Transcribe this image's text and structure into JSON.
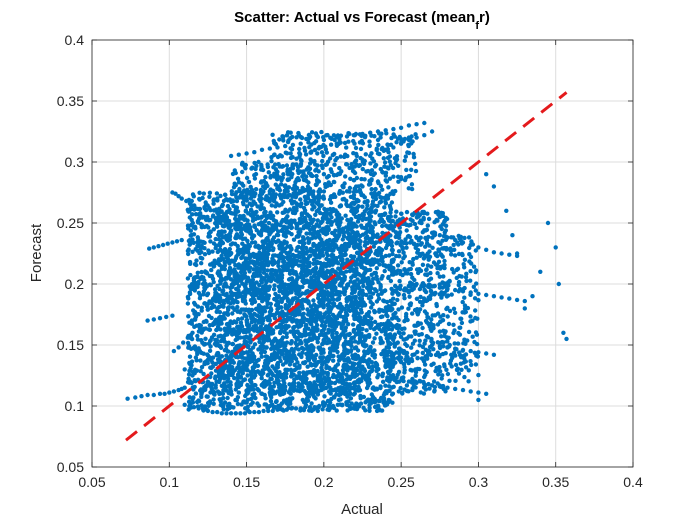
{
  "chart_data": {
    "type": "scatter",
    "title_main": "Scatter: Actual vs Forecast (mean",
    "title_sub": "f",
    "title_tail": "r)",
    "xlabel": "Actual",
    "ylabel": "Forecast",
    "xlim": [
      0.05,
      0.4
    ],
    "ylim": [
      0.05,
      0.4
    ],
    "xticks": [
      "0.05",
      "0.1",
      "0.15",
      "0.2",
      "0.25",
      "0.3",
      "0.35",
      "0.4"
    ],
    "yticks": [
      "0.05",
      "0.1",
      "0.15",
      "0.2",
      "0.25",
      "0.3",
      "0.35",
      "0.4"
    ],
    "grid": true,
    "colors": {
      "points": "#0072BD",
      "reference_line": "#E41A1C"
    },
    "reference_line": {
      "x": [
        0.072,
        0.357
      ],
      "y": [
        0.072,
        0.357
      ],
      "style": "dashed"
    },
    "series": [
      {
        "marker": "dot",
        "approx_point_count": 6000,
        "x": [
          0.073,
          0.078,
          0.082,
          0.086,
          0.09,
          0.094,
          0.097,
          0.1,
          0.103,
          0.106,
          0.108,
          0.11,
          0.087,
          0.09,
          0.093,
          0.096,
          0.099,
          0.102,
          0.105,
          0.108,
          0.086,
          0.09,
          0.094,
          0.098,
          0.102,
          0.102,
          0.104,
          0.106,
          0.108,
          0.111,
          0.114,
          0.117,
          0.12,
          0.122,
          0.103,
          0.106,
          0.109,
          0.112,
          0.115,
          0.11,
          0.113,
          0.116,
          0.119,
          0.122,
          0.125,
          0.128,
          0.131,
          0.134,
          0.137,
          0.14,
          0.143,
          0.146,
          0.149,
          0.152,
          0.155,
          0.158,
          0.161,
          0.164,
          0.167,
          0.17,
          0.173,
          0.176,
          0.179,
          0.182,
          0.185,
          0.188,
          0.191,
          0.194,
          0.197,
          0.2,
          0.203,
          0.206,
          0.209,
          0.212,
          0.215,
          0.218,
          0.221,
          0.224,
          0.227,
          0.23,
          0.233,
          0.236,
          0.239,
          0.242,
          0.14,
          0.145,
          0.15,
          0.155,
          0.16,
          0.165,
          0.17,
          0.175,
          0.18,
          0.185,
          0.19,
          0.195,
          0.2,
          0.205,
          0.21,
          0.215,
          0.22,
          0.225,
          0.23,
          0.235,
          0.24,
          0.245,
          0.25,
          0.255,
          0.26,
          0.265,
          0.15,
          0.155,
          0.16,
          0.165,
          0.17,
          0.175,
          0.18,
          0.185,
          0.19,
          0.195,
          0.2,
          0.205,
          0.21,
          0.215,
          0.22,
          0.225,
          0.23,
          0.235,
          0.24,
          0.2,
          0.205,
          0.21,
          0.215,
          0.22,
          0.225,
          0.23,
          0.235,
          0.24,
          0.245,
          0.25,
          0.255,
          0.26,
          0.265,
          0.27,
          0.25,
          0.255,
          0.26,
          0.265,
          0.27,
          0.275,
          0.28,
          0.285,
          0.29,
          0.295,
          0.3,
          0.305,
          0.31,
          0.315,
          0.32,
          0.325,
          0.26,
          0.265,
          0.27,
          0.275,
          0.28,
          0.285,
          0.29,
          0.295,
          0.3,
          0.305,
          0.31,
          0.315,
          0.32,
          0.325,
          0.33,
          0.27,
          0.275,
          0.28,
          0.285,
          0.29,
          0.295,
          0.3,
          0.305,
          0.31,
          0.255,
          0.26,
          0.265,
          0.27,
          0.275,
          0.28,
          0.285,
          0.29,
          0.295,
          0.3,
          0.305,
          0.345,
          0.35,
          0.355,
          0.357,
          0.352,
          0.34,
          0.335,
          0.33,
          0.325,
          0.322,
          0.318,
          0.31,
          0.305,
          0.3,
          0.11,
          0.115,
          0.12,
          0.125,
          0.13,
          0.135,
          0.14,
          0.145,
          0.15,
          0.155,
          0.16,
          0.165,
          0.17,
          0.175,
          0.18,
          0.185,
          0.19,
          0.195,
          0.2,
          0.205,
          0.21,
          0.215,
          0.22,
          0.225,
          0.23,
          0.235,
          0.24,
          0.245,
          0.25
        ],
        "y": [
          0.106,
          0.107,
          0.108,
          0.109,
          0.109,
          0.11,
          0.11,
          0.111,
          0.112,
          0.113,
          0.114,
          0.115,
          0.229,
          0.23,
          0.231,
          0.232,
          0.233,
          0.234,
          0.235,
          0.236,
          0.17,
          0.171,
          0.172,
          0.173,
          0.174,
          0.275,
          0.274,
          0.272,
          0.27,
          0.268,
          0.265,
          0.262,
          0.258,
          0.255,
          0.145,
          0.148,
          0.152,
          0.156,
          0.16,
          0.101,
          0.1,
          0.099,
          0.098,
          0.097,
          0.096,
          0.095,
          0.095,
          0.094,
          0.094,
          0.094,
          0.094,
          0.094,
          0.094,
          0.095,
          0.095,
          0.095,
          0.096,
          0.096,
          0.096,
          0.097,
          0.097,
          0.097,
          0.098,
          0.098,
          0.098,
          0.099,
          0.099,
          0.099,
          0.1,
          0.1,
          0.1,
          0.1,
          0.101,
          0.101,
          0.101,
          0.102,
          0.102,
          0.102,
          0.103,
          0.103,
          0.103,
          0.104,
          0.104,
          0.105,
          0.305,
          0.306,
          0.307,
          0.308,
          0.31,
          0.311,
          0.312,
          0.313,
          0.314,
          0.315,
          0.316,
          0.317,
          0.318,
          0.319,
          0.32,
          0.321,
          0.322,
          0.323,
          0.324,
          0.325,
          0.326,
          0.327,
          0.328,
          0.33,
          0.331,
          0.332,
          0.27,
          0.272,
          0.274,
          0.276,
          0.278,
          0.28,
          0.278,
          0.275,
          0.273,
          0.271,
          0.27,
          0.272,
          0.274,
          0.276,
          0.278,
          0.28,
          0.282,
          0.284,
          0.285,
          0.29,
          0.292,
          0.295,
          0.298,
          0.3,
          0.302,
          0.305,
          0.307,
          0.31,
          0.312,
          0.315,
          0.318,
          0.32,
          0.322,
          0.325,
          0.25,
          0.248,
          0.246,
          0.244,
          0.242,
          0.24,
          0.238,
          0.236,
          0.234,
          0.232,
          0.23,
          0.228,
          0.226,
          0.225,
          0.224,
          0.223,
          0.2,
          0.199,
          0.198,
          0.197,
          0.196,
          0.195,
          0.194,
          0.193,
          0.192,
          0.191,
          0.19,
          0.189,
          0.188,
          0.187,
          0.186,
          0.15,
          0.149,
          0.148,
          0.147,
          0.146,
          0.145,
          0.144,
          0.143,
          0.142,
          0.12,
          0.119,
          0.118,
          0.117,
          0.116,
          0.115,
          0.114,
          0.113,
          0.112,
          0.111,
          0.11,
          0.25,
          0.23,
          0.16,
          0.155,
          0.2,
          0.21,
          0.19,
          0.18,
          0.225,
          0.24,
          0.26,
          0.28,
          0.29,
          0.105,
          0.13,
          0.125,
          0.12,
          0.118,
          0.115,
          0.113,
          0.112,
          0.111,
          0.11,
          0.11,
          0.11,
          0.111,
          0.112,
          0.113,
          0.114,
          0.115,
          0.116,
          0.117,
          0.118,
          0.119,
          0.12,
          0.122,
          0.124,
          0.126,
          0.128,
          0.13,
          0.132,
          0.134,
          0.136
        ]
      }
    ]
  }
}
